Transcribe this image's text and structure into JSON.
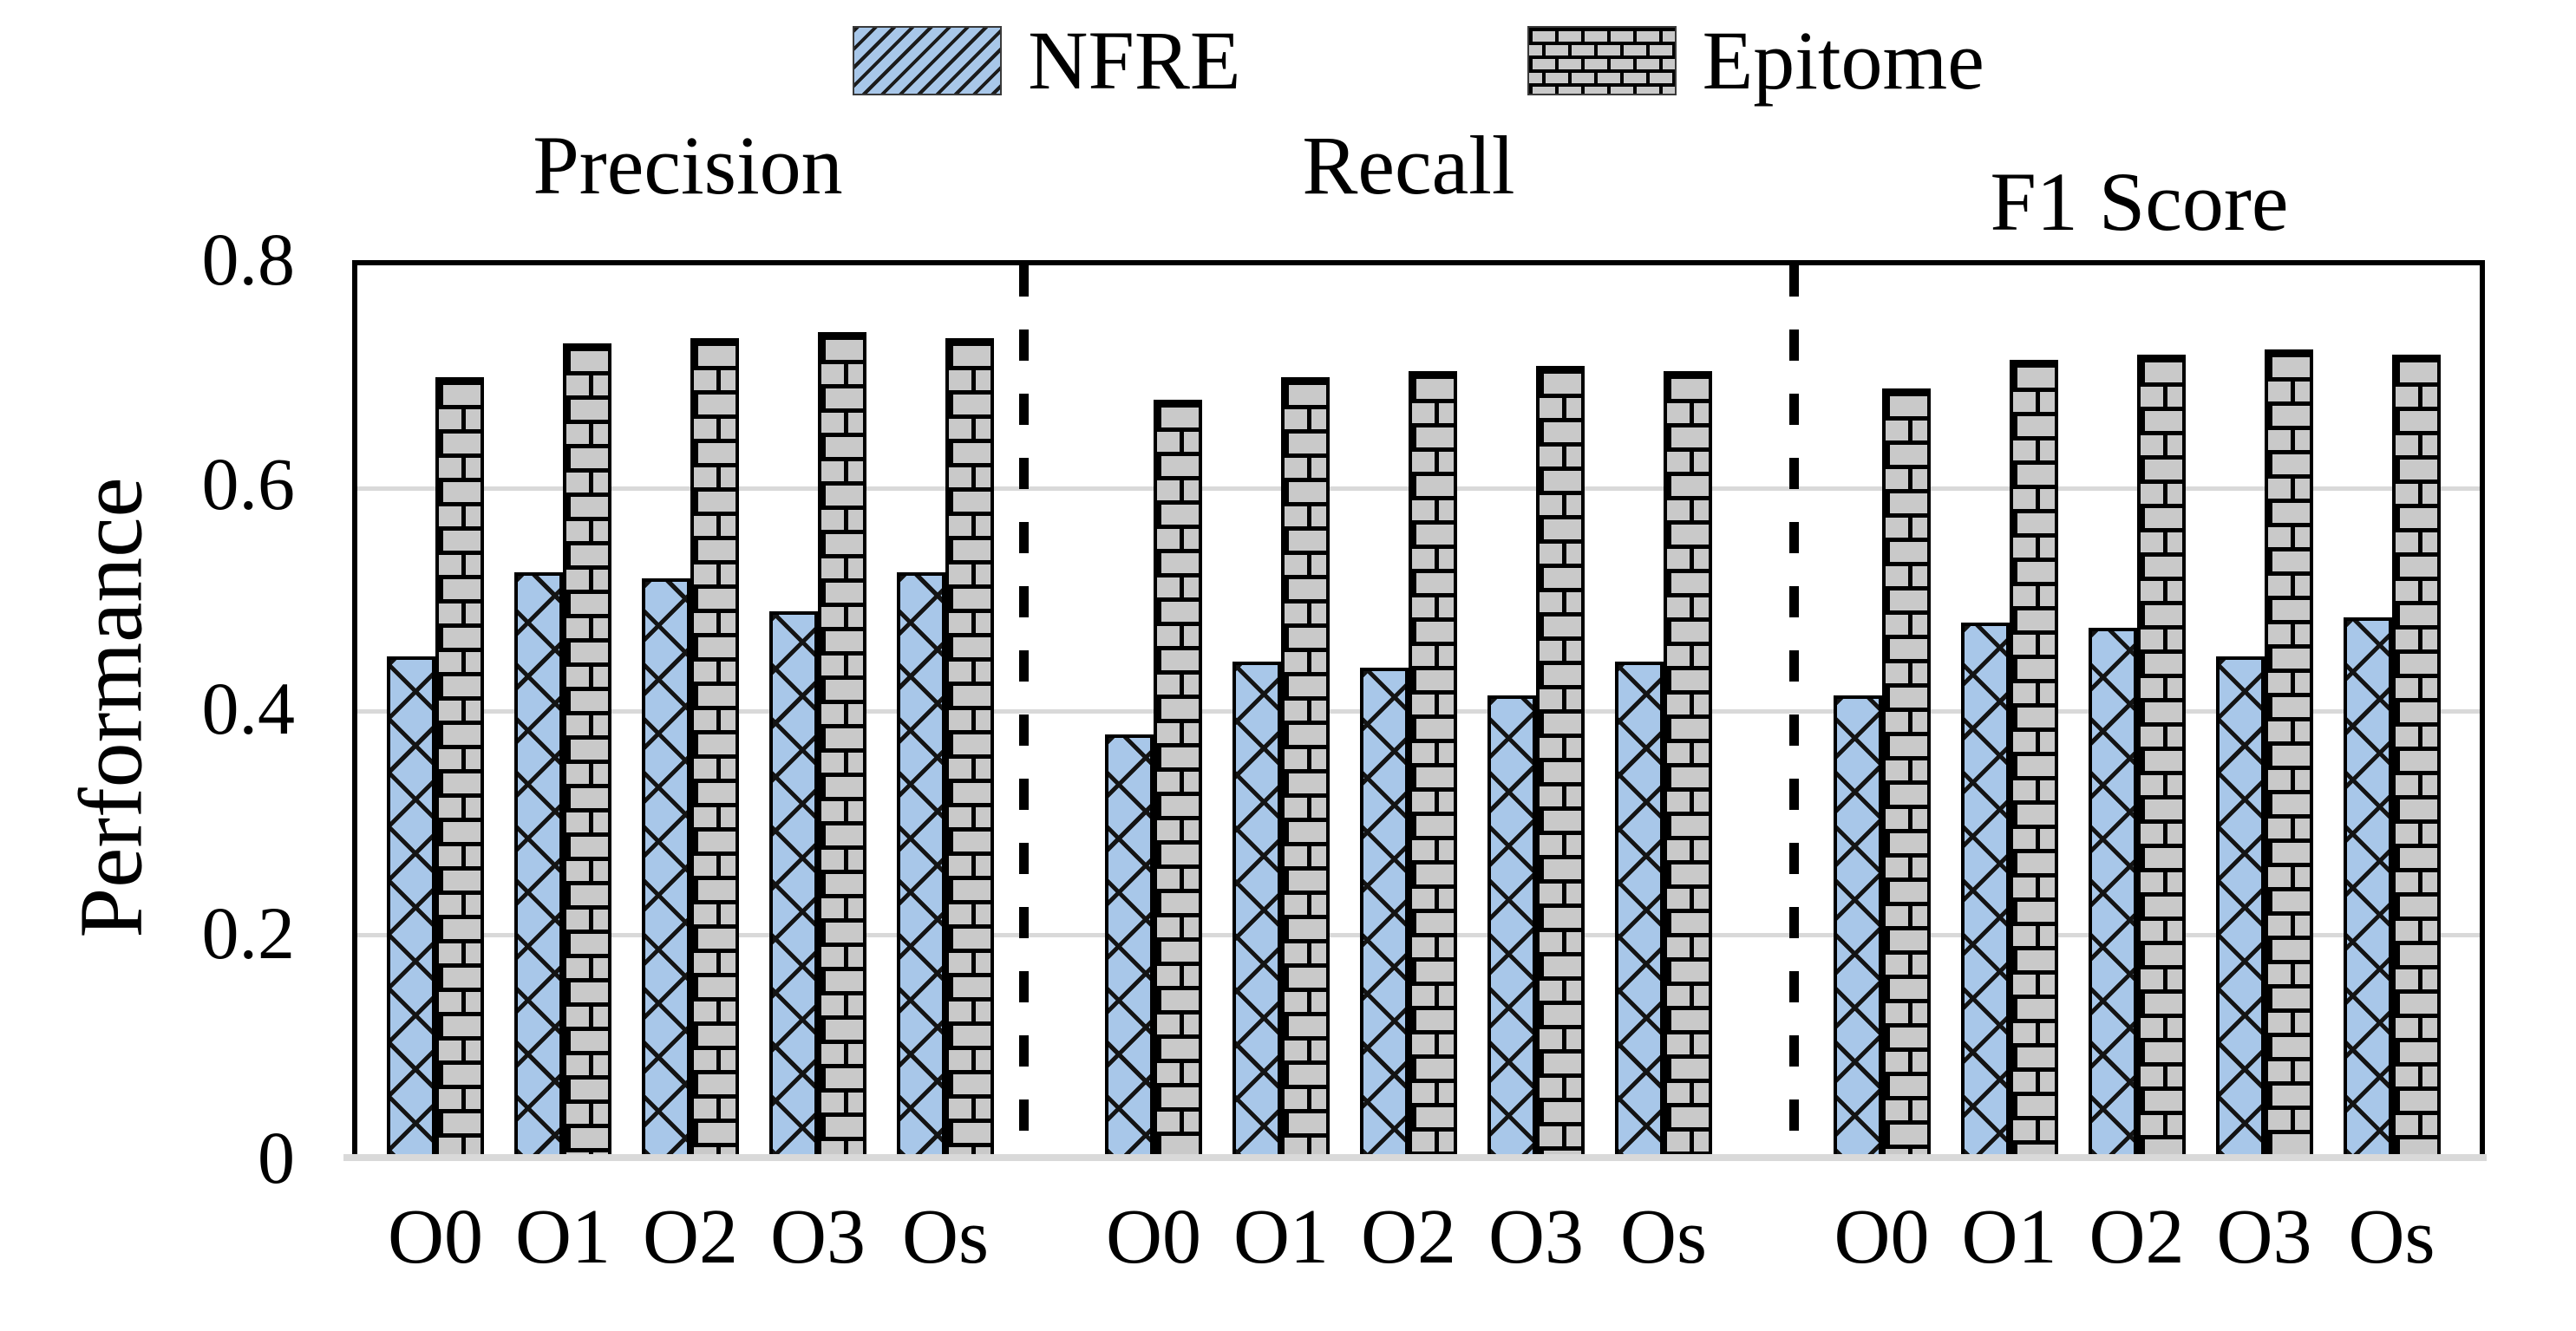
{
  "chart_data": {
    "type": "bar",
    "title": "",
    "xlabel": "",
    "ylabel": "Performance",
    "ylim": [
      0,
      0.8
    ],
    "yticks": [
      "0",
      "0.2",
      "0.4",
      "0.6",
      "0.8"
    ],
    "gridlines": [
      0.2,
      0.4,
      0.6
    ],
    "grid": "horizontal",
    "legend_position": "top-center",
    "categories": [
      "O0",
      "O1",
      "O2",
      "O3",
      "Os"
    ],
    "legend": [
      {
        "name": "NFRE",
        "fill": "#A8C7E9",
        "pattern": "diagonal-hatch-crosshatch"
      },
      {
        "name": "Epitome",
        "fill": "#C9C9C9",
        "pattern": "brick"
      }
    ],
    "panels": [
      {
        "title": "Precision",
        "series": [
          {
            "name": "NFRE",
            "values": [
              0.45,
              0.525,
              0.52,
              0.49,
              0.525
            ]
          },
          {
            "name": "Epitome",
            "values": [
              0.7,
              0.73,
              0.735,
              0.74,
              0.735
            ]
          }
        ]
      },
      {
        "title": "Recall",
        "series": [
          {
            "name": "NFRE",
            "values": [
              0.38,
              0.445,
              0.44,
              0.415,
              0.445
            ]
          },
          {
            "name": "Epitome",
            "values": [
              0.68,
              0.7,
              0.705,
              0.71,
              0.705
            ]
          }
        ]
      },
      {
        "title": "F1 Score",
        "series": [
          {
            "name": "NFRE",
            "values": [
              0.415,
              0.48,
              0.475,
              0.45,
              0.485
            ]
          },
          {
            "name": "Epitome",
            "values": [
              0.69,
              0.715,
              0.72,
              0.725,
              0.72
            ]
          }
        ]
      }
    ]
  },
  "colors": {
    "nfre_fill": "#A8C7E9",
    "epitome_fill": "#C9C9C9",
    "gridline": "#D9D9D9",
    "pattern_line": "#000000",
    "separator": "#000000"
  }
}
